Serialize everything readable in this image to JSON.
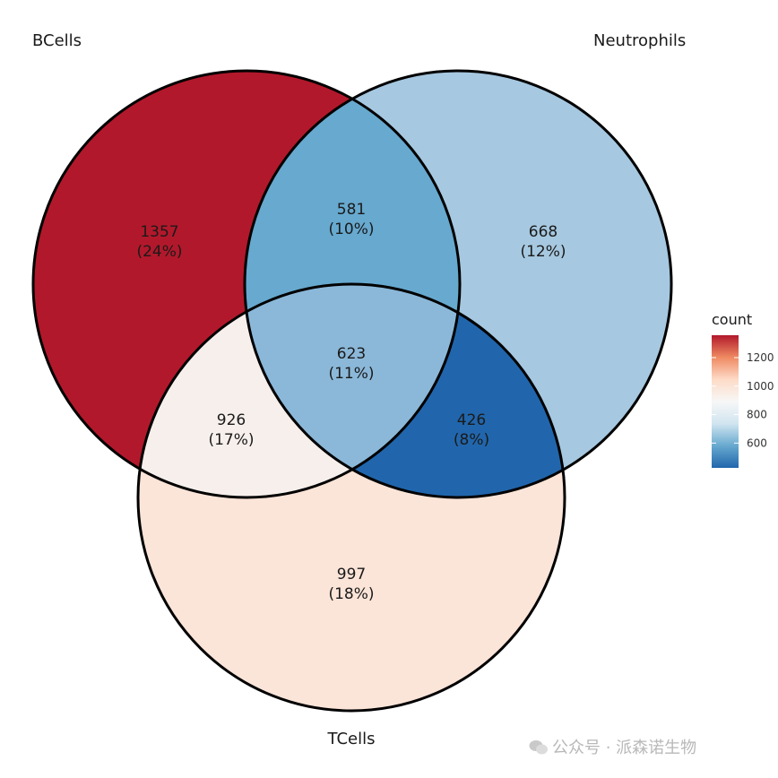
{
  "sets": {
    "bcells": "BCells",
    "neutrophils": "Neutrophils",
    "tcells": "TCells"
  },
  "regions": {
    "b_only": {
      "count": "1357",
      "pct": "(24%)",
      "value": 1357,
      "color": "#b2182b"
    },
    "bn": {
      "count": "581",
      "pct": "(10%)",
      "value": 581,
      "color": "#67a9cf"
    },
    "n_only": {
      "count": "668",
      "pct": "(12%)",
      "value": 668,
      "color": "#a6c8e0"
    },
    "bt": {
      "count": "926",
      "pct": "(17%)",
      "value": 926,
      "color": "#f7efec"
    },
    "bnt": {
      "count": "623",
      "pct": "(11%)",
      "value": 623,
      "color": "#8bb8d9"
    },
    "nt": {
      "count": "426",
      "pct": "(8%)",
      "value": 426,
      "color": "#2166ac"
    },
    "t_only": {
      "count": "997",
      "pct": "(18%)",
      "value": 997,
      "color": "#fbe4d8"
    }
  },
  "legend": {
    "title": "count",
    "ticks": [
      "1200",
      "1000",
      "800",
      "600"
    ],
    "tick_values": [
      1200,
      1000,
      800,
      600
    ],
    "range": [
      426,
      1357
    ],
    "colors": [
      "#2166ac",
      "#67a9cf",
      "#d1e5f0",
      "#f7f7f7",
      "#fddbc7",
      "#ef8a62",
      "#b2182b"
    ]
  },
  "watermark": "公众号 · 派森诺生物"
}
